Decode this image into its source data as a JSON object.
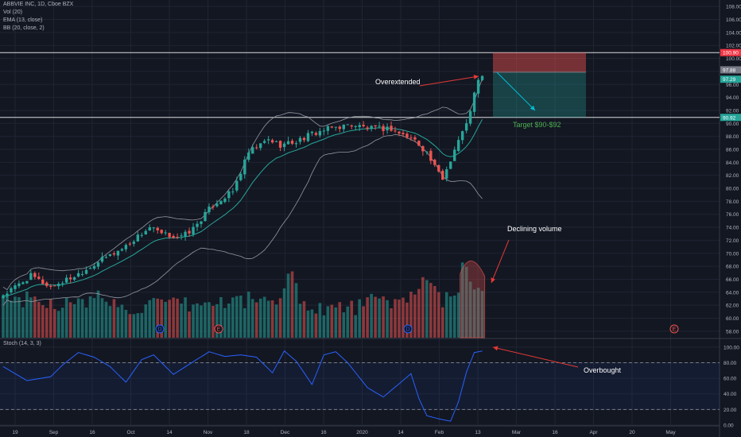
{
  "header": {
    "symbol": "ABBVIE INC, 1D, Cboe BZX",
    "ind_vol": "Vol (20)",
    "ind_ema": "EMA (13, close)",
    "ind_bb": "BB (20, close, 2)",
    "ind_stoch": "Stoch (14, 3, 3)"
  },
  "annotations": {
    "overextended": "Overextended",
    "declining_volume": "Declining volume",
    "overbought": "Overbought",
    "target": "Target $90-$92"
  },
  "colors": {
    "background": "#131722",
    "up": "#26a69a",
    "down": "#ef5350",
    "stoch": "#2962ff",
    "arrow": "#e53935",
    "trend_arrow": "#00bcd4"
  },
  "chart_data": {
    "type": "candlestick",
    "price_axis": {
      "range": [
        57,
        109
      ],
      "ticks": [
        58,
        60,
        62,
        64,
        66,
        68,
        70,
        72,
        74,
        76,
        78,
        80,
        82,
        84,
        86,
        88,
        90,
        92,
        94,
        96,
        98,
        100,
        102,
        104,
        106,
        108
      ]
    },
    "stoch_axis": {
      "range": [
        0,
        110
      ],
      "ticks": [
        0,
        20,
        40,
        60,
        80,
        100
      ],
      "bands": [
        20,
        80
      ]
    },
    "time_axis": {
      "labels": [
        "19",
        "Sep",
        "16",
        "Oct",
        "14",
        "Nov",
        "18",
        "Dec",
        "16",
        "2020",
        "14",
        "Feb",
        "13",
        "Mar",
        "16",
        "Apr",
        "20",
        "May"
      ]
    },
    "price_tags": [
      {
        "value": 100.9,
        "label": "100.90",
        "color": "#f23645"
      },
      {
        "value": 97.88,
        "label": "97.88",
        "color": "#787b86"
      },
      {
        "value": 97.29,
        "label": "97.29",
        "color": "#26a69a"
      },
      {
        "value": 90.92,
        "label": "90.92",
        "color": "#26a69a"
      }
    ],
    "levels": [
      100.9,
      90.92
    ],
    "position": {
      "entry": 97.88,
      "stop": 100.9,
      "target": 90.92
    },
    "close_anchors": [
      [
        0,
        63.5
      ],
      [
        7,
        66.5
      ],
      [
        12,
        64.8
      ],
      [
        18,
        66.5
      ],
      [
        24,
        68.7
      ],
      [
        30,
        70.7
      ],
      [
        37,
        74
      ],
      [
        40,
        72.9
      ],
      [
        45,
        72.5
      ],
      [
        48,
        73.8
      ],
      [
        53,
        77.5
      ],
      [
        58,
        79.5
      ],
      [
        62,
        85.5
      ],
      [
        67,
        87.5
      ],
      [
        70,
        86.7
      ],
      [
        74,
        87.2
      ],
      [
        78,
        88.4
      ],
      [
        83,
        89.3
      ],
      [
        88,
        89.8
      ],
      [
        93,
        89.2
      ],
      [
        98,
        89.2
      ],
      [
        101,
        88.2
      ],
      [
        104,
        87.4
      ],
      [
        107,
        85.5
      ],
      [
        109,
        83.2
      ],
      [
        111,
        81.5
      ],
      [
        113,
        84.5
      ],
      [
        115,
        87.5
      ],
      [
        117,
        89.8
      ],
      [
        119,
        94.5
      ],
      [
        120,
        96.5
      ],
      [
        121,
        97.3
      ]
    ],
    "volume_anchors": [
      [
        0,
        63.3
      ],
      [
        10,
        62.6
      ],
      [
        20,
        62
      ],
      [
        25,
        63.6
      ],
      [
        30,
        61.5
      ],
      [
        40,
        62
      ],
      [
        50,
        62
      ],
      [
        60,
        62.8
      ],
      [
        65,
        63
      ],
      [
        70,
        62.3
      ],
      [
        73,
        68.5
      ],
      [
        75,
        62
      ],
      [
        80,
        61.7
      ],
      [
        85,
        61.5
      ],
      [
        90,
        61.8
      ],
      [
        93,
        62.8
      ],
      [
        96,
        62.4
      ],
      [
        100,
        62.4
      ],
      [
        105,
        65.2
      ],
      [
        108,
        64.8
      ],
      [
        111,
        62.5
      ],
      [
        113,
        63
      ],
      [
        115,
        64.5
      ],
      [
        116,
        69.3
      ],
      [
        117,
        68.7
      ],
      [
        118,
        66.7
      ],
      [
        119,
        65.3
      ],
      [
        121,
        63.8
      ]
    ],
    "stoch_anchors": [
      [
        0,
        75
      ],
      [
        6,
        57
      ],
      [
        12,
        62
      ],
      [
        15,
        77
      ],
      [
        19,
        93
      ],
      [
        23,
        87
      ],
      [
        27,
        75
      ],
      [
        31,
        55
      ],
      [
        35,
        84
      ],
      [
        38,
        90
      ],
      [
        43,
        65
      ],
      [
        47,
        78
      ],
      [
        52,
        94
      ],
      [
        56,
        88
      ],
      [
        60,
        90
      ],
      [
        64,
        87
      ],
      [
        68,
        67
      ],
      [
        71,
        95
      ],
      [
        74,
        82
      ],
      [
        78,
        52
      ],
      [
        81,
        90
      ],
      [
        84,
        94
      ],
      [
        87,
        80
      ],
      [
        92,
        48
      ],
      [
        96,
        36
      ],
      [
        100,
        53
      ],
      [
        103,
        66
      ],
      [
        105,
        34
      ],
      [
        107,
        12
      ],
      [
        110,
        8
      ],
      [
        113,
        5
      ],
      [
        115,
        30
      ],
      [
        117,
        68
      ],
      [
        119,
        93
      ],
      [
        121,
        95
      ]
    ]
  }
}
